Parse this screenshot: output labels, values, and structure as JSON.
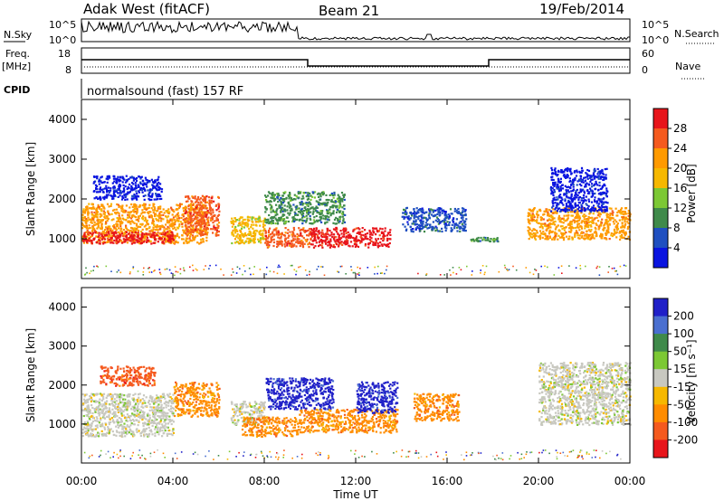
{
  "header": {
    "station": "Adak West (fitACF)",
    "beam": "Beam 21",
    "date": "19/Feb/2014",
    "cpid_label": "CPID",
    "program": "normalsound (fast) 157 RF"
  },
  "strips": {
    "nsky_label": "N.Sky",
    "nsky_ticks": [
      "10^5",
      "10^0"
    ],
    "nsearch_label": "N.Search",
    "freq_label": "Freq.",
    "freq_unit": "[MHz]",
    "freq_ticks": [
      "18",
      "8"
    ],
    "nave_label": "Nave",
    "nave_ticks": [
      "60",
      "0"
    ]
  },
  "chart_data": [
    {
      "type": "heatmap",
      "name": "power",
      "ylabel": "Slant Range [km]",
      "ylim": [
        0,
        4500
      ],
      "yticks": [
        1000,
        2000,
        3000,
        4000
      ],
      "xlim": [
        0,
        24
      ],
      "x_tick_labels": [
        "00:00",
        "04:00",
        "08:00",
        "12:00",
        "16:00",
        "20:00",
        "00:00"
      ],
      "colorbar": {
        "label": "Power [dB]",
        "ticks": [
          "28",
          "24",
          "20",
          "16",
          "12",
          "8",
          "4"
        ],
        "colors": [
          "#e8151b",
          "#f55a1e",
          "#ff9a00",
          "#f6b800",
          "#7cc834",
          "#3f8a4a",
          "#1f4fc0",
          "#0a14e0"
        ]
      },
      "regions": [
        {
          "t0": 0.0,
          "t1": 5.5,
          "r0": 900,
          "r1": 1900,
          "cidx": 2
        },
        {
          "t0": 0.0,
          "t1": 4.0,
          "r0": 900,
          "r1": 1200,
          "cidx": 0
        },
        {
          "t0": 4.5,
          "t1": 6.0,
          "r0": 1100,
          "r1": 2100,
          "cidx": 1
        },
        {
          "t0": 6.5,
          "t1": 8.0,
          "r0": 900,
          "r1": 1600,
          "cidx": 3
        },
        {
          "t0": 8.0,
          "t1": 10.0,
          "r0": 800,
          "r1": 1300,
          "cidx": 1
        },
        {
          "t0": 10.0,
          "t1": 13.5,
          "r0": 800,
          "r1": 1300,
          "cidx": 0
        },
        {
          "t0": 8.0,
          "t1": 11.5,
          "r0": 1400,
          "r1": 2200,
          "cidx": 5
        },
        {
          "t0": 14.0,
          "t1": 16.8,
          "r0": 1200,
          "r1": 1800,
          "cidx": 6
        },
        {
          "t0": 17.0,
          "t1": 18.2,
          "r0": 950,
          "r1": 1050,
          "cidx": 5
        },
        {
          "t0": 19.5,
          "t1": 24.0,
          "r0": 1000,
          "r1": 1800,
          "cidx": 2
        },
        {
          "t0": 20.5,
          "t1": 23.0,
          "r0": 1700,
          "r1": 2800,
          "cidx": 7
        },
        {
          "t0": 0.5,
          "t1": 3.5,
          "r0": 2000,
          "r1": 2600,
          "cidx": 7
        }
      ]
    },
    {
      "type": "heatmap",
      "name": "velocity",
      "ylabel": "Slant Range [km]",
      "xlabel": "Time UT",
      "ylim": [
        0,
        4500
      ],
      "yticks": [
        1000,
        2000,
        3000,
        4000
      ],
      "xlim": [
        0,
        24
      ],
      "x_tick_labels": [
        "00:00",
        "04:00",
        "08:00",
        "12:00",
        "16:00",
        "20:00",
        "00:00"
      ],
      "colorbar": {
        "label": "Velocity [m s⁻¹]",
        "ticks": [
          "200",
          "100",
          "50",
          "15",
          "-15",
          "-50",
          "-100",
          "-200"
        ],
        "colors": [
          "#2020c8",
          "#4a6fd0",
          "#3f8a4a",
          "#7cc834",
          "#c8c8c0",
          "#f6b800",
          "#ff8c00",
          "#f55a1e",
          "#e8151b"
        ]
      },
      "regions": [
        {
          "t0": 0.0,
          "t1": 4.0,
          "r0": 700,
          "r1": 1800,
          "cidx": 4
        },
        {
          "t0": 4.0,
          "t1": 6.0,
          "r0": 1200,
          "r1": 2100,
          "cidx": 6
        },
        {
          "t0": 6.5,
          "t1": 8.0,
          "r0": 1000,
          "r1": 1600,
          "cidx": 4
        },
        {
          "t0": 7.0,
          "t1": 9.5,
          "r0": 700,
          "r1": 1200,
          "cidx": 6
        },
        {
          "t0": 8.0,
          "t1": 11.0,
          "r0": 1400,
          "r1": 2200,
          "cidx": 0
        },
        {
          "t0": 9.5,
          "t1": 13.8,
          "r0": 800,
          "r1": 1400,
          "cidx": 6
        },
        {
          "t0": 12.0,
          "t1": 13.8,
          "r0": 1300,
          "r1": 2100,
          "cidx": 0
        },
        {
          "t0": 14.5,
          "t1": 16.5,
          "r0": 1100,
          "r1": 1800,
          "cidx": 6
        },
        {
          "t0": 20.0,
          "t1": 24.0,
          "r0": 1000,
          "r1": 2600,
          "cidx": 4
        },
        {
          "t0": 0.8,
          "t1": 3.2,
          "r0": 2000,
          "r1": 2500,
          "cidx": 7
        }
      ]
    }
  ]
}
